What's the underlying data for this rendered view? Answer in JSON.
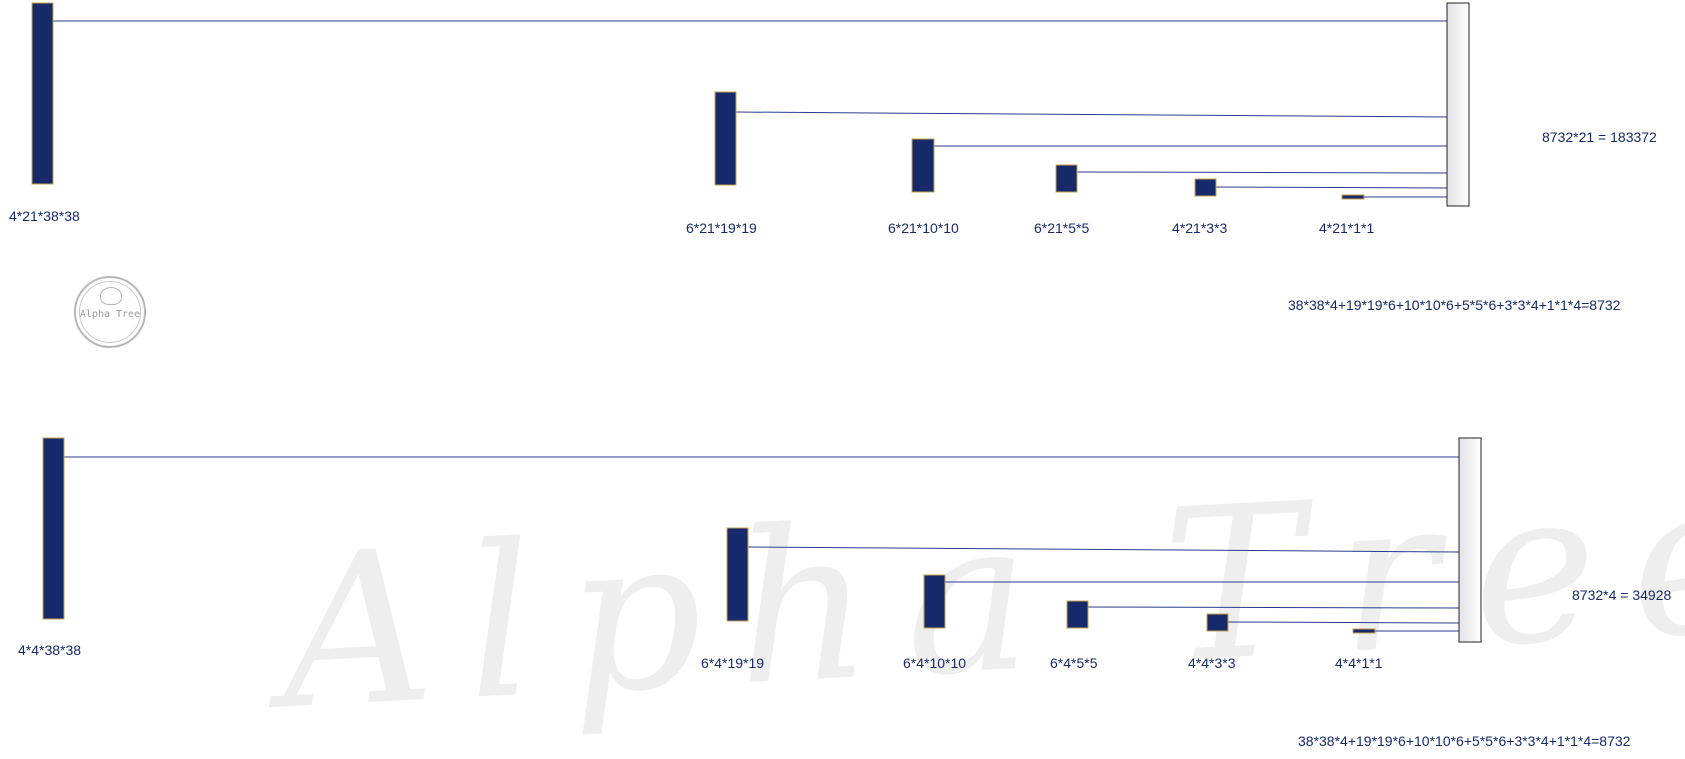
{
  "logo": {
    "text": "Alpha Tree"
  },
  "watermark": {
    "text": "Alpha Tree"
  },
  "colors": {
    "block": "#16296b",
    "block_border": "#c8a04a",
    "line": "#2a3b8f",
    "text": "#16296b"
  },
  "diagrams": [
    {
      "blocks": [
        "4*21*38*38",
        "6*21*19*19",
        "6*21*10*10",
        "6*21*5*5",
        "4*21*3*3",
        "4*21*1*1"
      ],
      "result": "8732*21 = 183372",
      "formula": "38*38*4+19*19*6+10*10*6+5*5*6+3*3*4+1*1*4=8732"
    },
    {
      "blocks": [
        "4*4*38*38",
        "6*4*19*19",
        "6*4*10*10",
        "6*4*5*5",
        "4*4*3*3",
        "4*4*1*1"
      ],
      "result": "8732*4 = 34928",
      "formula": "38*38*4+19*19*6+10*10*6+5*5*6+3*3*4+1*1*4=8732"
    }
  ]
}
